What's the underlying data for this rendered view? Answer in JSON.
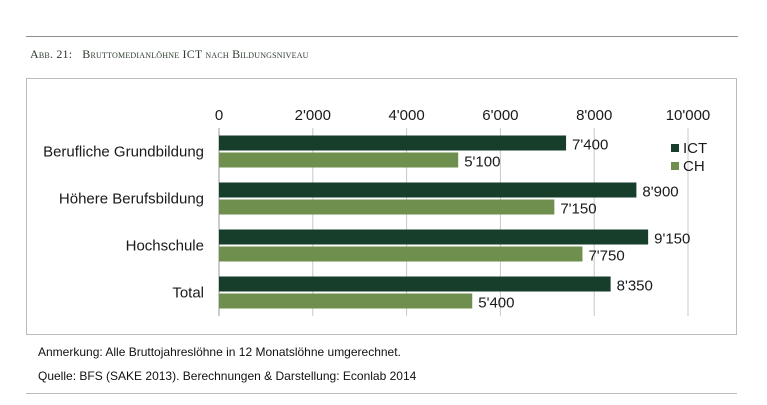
{
  "title": {
    "figure_number": "Abb. 21:",
    "text": "Bruttomedianlöhne ICT nach Bildungsniveau"
  },
  "chart_data": {
    "type": "bar",
    "orientation": "horizontal",
    "categories": [
      "Berufliche Grundbildung",
      "Höhere Berufsbildung",
      "Hochschule",
      "Total"
    ],
    "series": [
      {
        "name": "ICT",
        "color": "#173d2b",
        "values": [
          7400,
          8900,
          9150,
          8350
        ],
        "labels": [
          "7'400",
          "8'900",
          "9'150",
          "8'350"
        ]
      },
      {
        "name": "CH",
        "color": "#6f8f4e",
        "values": [
          5100,
          7150,
          7750,
          5400
        ],
        "labels": [
          "5'100",
          "7'150",
          "7'750",
          "5'400"
        ]
      }
    ],
    "xlim": [
      0,
      10000
    ],
    "x_ticks": [
      0,
      2000,
      4000,
      6000,
      8000,
      10000
    ],
    "x_tick_labels": [
      "0",
      "2'000",
      "4'000",
      "6'000",
      "8'000",
      "10'000"
    ],
    "x_axis_position": "top",
    "grid": true,
    "legend_position": "right"
  },
  "notes": {
    "remark_label": "Anmerkung:",
    "remark_text": "Alle Bruttojahreslöhne in 12 Monatslöhne umgerechnet.",
    "source_label": "Quelle:",
    "source_text": "BFS (SAKE 2013).",
    "credit_label": "Berechnungen & Darstellung:",
    "credit_text": "Econlab 2014"
  }
}
